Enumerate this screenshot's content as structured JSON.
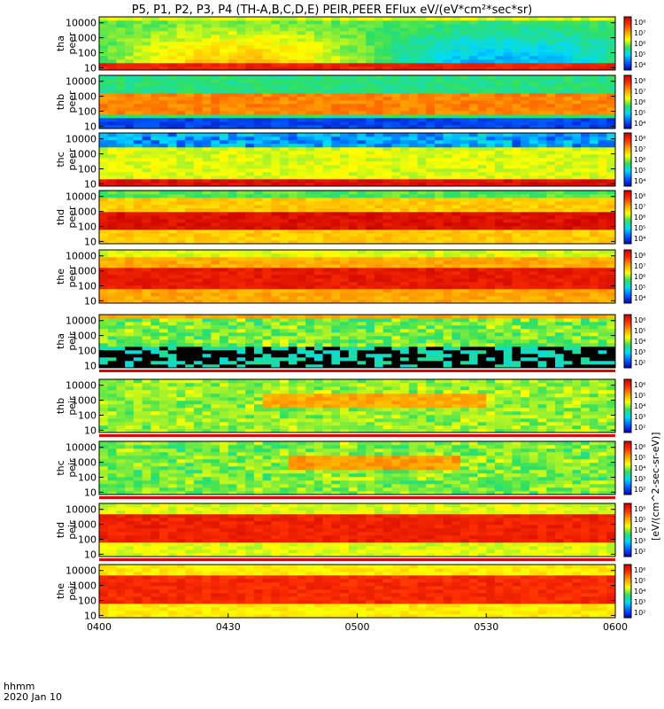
{
  "chart_data": {
    "type": "heatmap",
    "title": "P5, P1, P2, P3, P4 (TH-A,B,C,D,E) PEIR,PEER EFlux eV/(eV*cm²*sec*sr)",
    "colorbar_label": "[eV/(cm^2-sec-sr-eV)]",
    "time_axis": {
      "label": "hhmm",
      "date": "2020 Jan 10",
      "ticks": [
        "0400",
        "0430",
        "0500",
        "0530",
        "0600"
      ],
      "range_minutes": [
        0,
        120
      ]
    },
    "energy_ticks": [
      "10",
      "100",
      "1000",
      "10000"
    ],
    "energy_range_eV": [
      7,
      25000
    ],
    "panels": [
      {
        "id": "tha-peer",
        "probe": "tha",
        "product": "peer",
        "colorbar_ticks": [
          "10⁴",
          "10⁵",
          "10⁶",
          "10⁷",
          "10⁸"
        ]
      },
      {
        "id": "thb-peer",
        "probe": "thb",
        "product": "peer",
        "colorbar_ticks": [
          "10⁴",
          "10⁵",
          "10⁶",
          "10⁷",
          "10⁸"
        ]
      },
      {
        "id": "thc-peer",
        "probe": "thc",
        "product": "peer",
        "colorbar_ticks": [
          "10⁴",
          "10⁵",
          "10⁶",
          "10⁷",
          "10⁸"
        ]
      },
      {
        "id": "thd-peer",
        "probe": "thd",
        "product": "peer",
        "colorbar_ticks": [
          "10⁴",
          "10⁵",
          "10⁶",
          "10⁷",
          "10⁸"
        ]
      },
      {
        "id": "the-peer",
        "probe": "the",
        "product": "peer",
        "colorbar_ticks": [
          "10⁴",
          "10⁵",
          "10⁶",
          "10⁷",
          "10⁸"
        ]
      },
      {
        "id": "tha-peir",
        "probe": "tha",
        "product": "peir",
        "colorbar_ticks": [
          "10²",
          "10³",
          "10⁴",
          "10⁵",
          "10⁶"
        ]
      },
      {
        "id": "thb-peir",
        "probe": "thb",
        "product": "peir",
        "colorbar_ticks": [
          "10²",
          "10³",
          "10⁴",
          "10⁵",
          "10⁶"
        ]
      },
      {
        "id": "thc-peir",
        "probe": "thc",
        "product": "peir",
        "colorbar_ticks": [
          "10²",
          "10³",
          "10⁴",
          "10⁵",
          "10⁶"
        ]
      },
      {
        "id": "thd-peir",
        "probe": "thd",
        "product": "peir",
        "colorbar_ticks": [
          "10²",
          "10³",
          "10⁴",
          "10⁵",
          "10⁶"
        ]
      },
      {
        "id": "the-peir",
        "probe": "the",
        "product": "peir",
        "colorbar_ticks": [
          "10²",
          "10³",
          "10⁴",
          "10⁵",
          "10⁶"
        ]
      }
    ],
    "colors": {
      "colormap": [
        "#0000c0",
        "#0060ff",
        "#00d8ff",
        "#30e060",
        "#ffff00",
        "#ffa000",
        "#ff3000",
        "#c80000"
      ],
      "flag_bar": "#e00000",
      "low_count": "#000000"
    }
  }
}
